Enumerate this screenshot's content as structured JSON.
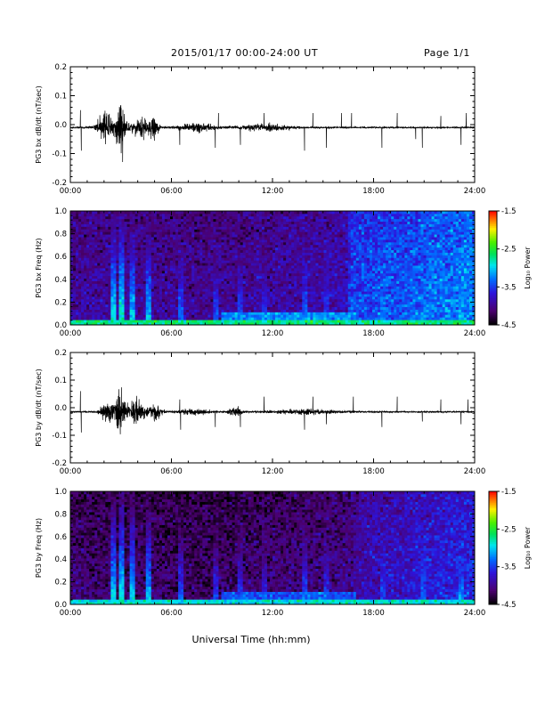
{
  "header": {
    "title": "2015/01/17  00:00-24:00 UT",
    "page": "Page 1/1"
  },
  "x_axis": {
    "label": "Universal Time (hh:mm)",
    "ticks": [
      "00:00",
      "06:00",
      "12:00",
      "18:00",
      "24:00"
    ]
  },
  "colorbar": {
    "label": "Log₁₀ Power",
    "ticks": [
      "-1.5",
      "-2.5",
      "-3.5",
      "-4.5"
    ]
  },
  "chart_data": [
    {
      "type": "line",
      "ylabel": "PG3 bx dB/dt (nT/sec)",
      "xlim": [
        0,
        24
      ],
      "ylim": [
        -0.2,
        0.2
      ],
      "yticks": [
        "0.2",
        "0.1",
        "0.0",
        "-0.1",
        "-0.2"
      ],
      "baseline": -0.01,
      "bursts": [
        {
          "t": 2.1,
          "w": 0.9,
          "amp": 0.1
        },
        {
          "t": 3.0,
          "w": 0.5,
          "amp": 0.17
        },
        {
          "t": 4.2,
          "w": 1.2,
          "amp": 0.07
        },
        {
          "t": 5.0,
          "w": 0.5,
          "amp": 0.05
        },
        {
          "t": 7.5,
          "w": 2.0,
          "amp": 0.025
        },
        {
          "t": 11.5,
          "w": 3.0,
          "amp": 0.02
        }
      ],
      "spikes": [
        {
          "t": 0.6,
          "v": 0.05
        },
        {
          "t": 0.65,
          "v": -0.09
        },
        {
          "t": 6.5,
          "v": -0.07
        },
        {
          "t": 8.6,
          "v": -0.08
        },
        {
          "t": 8.8,
          "v": 0.04
        },
        {
          "t": 10.1,
          "v": -0.07
        },
        {
          "t": 11.5,
          "v": 0.04
        },
        {
          "t": 13.9,
          "v": -0.09
        },
        {
          "t": 14.4,
          "v": 0.04
        },
        {
          "t": 15.2,
          "v": -0.08
        },
        {
          "t": 16.1,
          "v": 0.04
        },
        {
          "t": 16.7,
          "v": 0.04
        },
        {
          "t": 18.5,
          "v": -0.08
        },
        {
          "t": 19.4,
          "v": 0.04
        },
        {
          "t": 20.5,
          "v": -0.05
        },
        {
          "t": 20.9,
          "v": -0.08
        },
        {
          "t": 22.0,
          "v": 0.03
        },
        {
          "t": 23.2,
          "v": -0.07
        },
        {
          "t": 23.5,
          "v": 0.04
        }
      ]
    },
    {
      "type": "heatmap",
      "ylabel": "PG3 bx Freq (Hz)",
      "xlim": [
        0,
        24
      ],
      "ylim": [
        0,
        1.0
      ],
      "yticks": [
        "1.0",
        "0.8",
        "0.6",
        "0.4",
        "0.2",
        "0.0"
      ],
      "zlim": [
        -4.5,
        -1.5
      ],
      "background_power": [
        {
          "t": 0,
          "v": -3.9
        },
        {
          "t": 8,
          "v": -3.95
        },
        {
          "t": 16.4,
          "v": -3.8
        },
        {
          "t": 16.6,
          "v": -3.45
        },
        {
          "t": 20,
          "v": -3.35
        },
        {
          "t": 24,
          "v": -3.2
        }
      ],
      "stripes": [
        {
          "t": 2.5,
          "v": -2.8
        },
        {
          "t": 3.0,
          "v": -2.7
        },
        {
          "t": 3.7,
          "v": -2.9
        },
        {
          "t": 4.6,
          "v": -2.95
        },
        {
          "t": 6.5,
          "v": -3.2
        },
        {
          "t": 8.6,
          "v": -3.3
        },
        {
          "t": 10.1,
          "v": -3.3
        },
        {
          "t": 11.5,
          "v": -3.4
        },
        {
          "t": 13.9,
          "v": -3.2
        },
        {
          "t": 15.2,
          "v": -3.3
        },
        {
          "t": 18.5,
          "v": -3.1
        },
        {
          "t": 20.9,
          "v": -3.1
        },
        {
          "t": 23.2,
          "v": -3.0
        }
      ],
      "low_band_power": -2.7
    },
    {
      "type": "line",
      "ylabel": "PG3 by dB/dt (nT/sec)",
      "xlim": [
        0,
        24
      ],
      "ylim": [
        -0.2,
        0.2
      ],
      "yticks": [
        "0.2",
        "0.1",
        "0.0",
        "-0.1",
        "-0.2"
      ],
      "baseline": -0.015,
      "bursts": [
        {
          "t": 2.2,
          "w": 0.8,
          "amp": 0.08
        },
        {
          "t": 2.9,
          "w": 0.6,
          "amp": 0.13
        },
        {
          "t": 3.8,
          "w": 1.2,
          "amp": 0.08
        },
        {
          "t": 5.0,
          "w": 0.8,
          "amp": 0.05
        },
        {
          "t": 7.3,
          "w": 2.0,
          "amp": 0.02
        },
        {
          "t": 9.8,
          "w": 0.8,
          "amp": 0.03
        },
        {
          "t": 14.0,
          "w": 4.0,
          "amp": 0.015
        }
      ],
      "spikes": [
        {
          "t": 0.6,
          "v": 0.06
        },
        {
          "t": 0.65,
          "v": -0.09
        },
        {
          "t": 6.5,
          "v": 0.03
        },
        {
          "t": 6.55,
          "v": -0.08
        },
        {
          "t": 8.6,
          "v": -0.07
        },
        {
          "t": 10.1,
          "v": -0.07
        },
        {
          "t": 11.5,
          "v": 0.04
        },
        {
          "t": 13.9,
          "v": -0.08
        },
        {
          "t": 14.4,
          "v": 0.04
        },
        {
          "t": 15.2,
          "v": -0.06
        },
        {
          "t": 16.8,
          "v": 0.04
        },
        {
          "t": 18.5,
          "v": -0.07
        },
        {
          "t": 19.4,
          "v": 0.04
        },
        {
          "t": 20.9,
          "v": -0.05
        },
        {
          "t": 22.0,
          "v": 0.03
        },
        {
          "t": 23.2,
          "v": -0.06
        },
        {
          "t": 23.6,
          "v": 0.03
        }
      ]
    },
    {
      "type": "heatmap",
      "ylabel": "PG3 by Freq (Hz)",
      "xlim": [
        0,
        24
      ],
      "ylim": [
        0,
        1.0
      ],
      "yticks": [
        "1.0",
        "0.8",
        "0.6",
        "0.4",
        "0.2",
        "0.0"
      ],
      "zlim": [
        -4.5,
        -1.5
      ],
      "background_power": [
        {
          "t": 0,
          "v": -4.1
        },
        {
          "t": 8,
          "v": -4.15
        },
        {
          "t": 16.4,
          "v": -4.0
        },
        {
          "t": 17.5,
          "v": -3.8
        },
        {
          "t": 20,
          "v": -3.7
        },
        {
          "t": 24,
          "v": -3.55
        }
      ],
      "stripes": [
        {
          "t": 2.5,
          "v": -2.9
        },
        {
          "t": 3.0,
          "v": -2.8
        },
        {
          "t": 3.7,
          "v": -2.9
        },
        {
          "t": 4.6,
          "v": -3.0
        },
        {
          "t": 6.5,
          "v": -3.3
        },
        {
          "t": 8.6,
          "v": -3.4
        },
        {
          "t": 10.1,
          "v": -3.4
        },
        {
          "t": 11.5,
          "v": -3.5
        },
        {
          "t": 13.9,
          "v": -3.3
        },
        {
          "t": 15.2,
          "v": -3.4
        },
        {
          "t": 18.5,
          "v": -3.3
        },
        {
          "t": 20.9,
          "v": -3.2
        },
        {
          "t": 23.2,
          "v": -3.1
        }
      ],
      "low_band_power": -2.9
    }
  ]
}
